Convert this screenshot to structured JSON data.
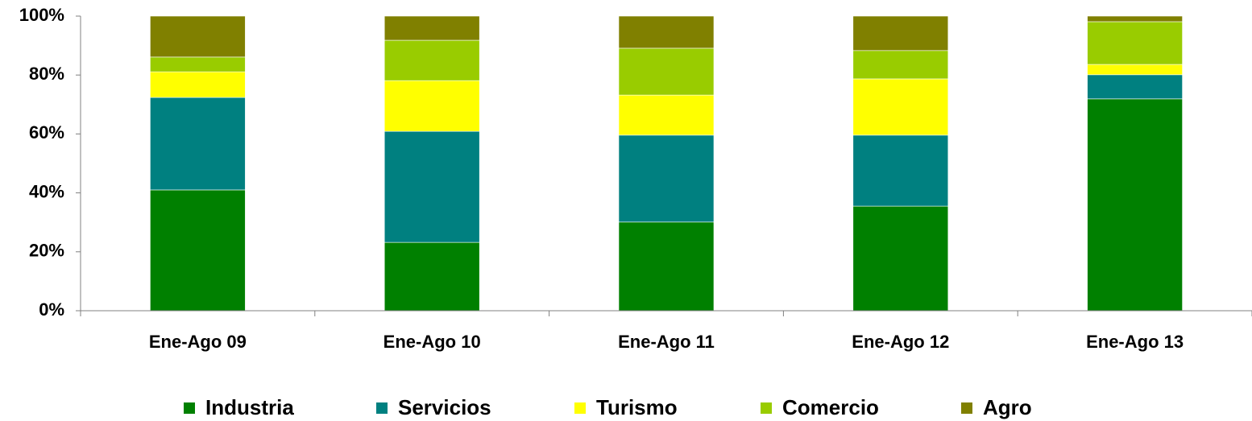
{
  "chart_data": {
    "type": "stacked_bar",
    "categories": [
      "Ene-Ago 09",
      "Ene-Ago 10",
      "Ene-Ago 11",
      "Ene-Ago 12",
      "Ene-Ago 13"
    ],
    "series": [
      {
        "name": "Industria",
        "color": "#008000",
        "values": [
          41.0,
          23.2,
          30.1,
          35.5,
          71.9
        ]
      },
      {
        "name": "Servicios",
        "color": "#008080",
        "values": [
          31.4,
          37.7,
          29.5,
          24.1,
          8.2
        ]
      },
      {
        "name": "Turismo",
        "color": "#ffff00",
        "values": [
          8.7,
          17.2,
          13.6,
          19.1,
          3.5
        ]
      },
      {
        "name": "Comercio",
        "color": "#99cc00",
        "values": [
          5.0,
          13.7,
          15.9,
          9.6,
          14.5
        ]
      },
      {
        "name": "Agro",
        "color": "#808000",
        "values": [
          13.9,
          8.2,
          10.9,
          11.7,
          1.9
        ]
      }
    ],
    "ylim": [
      0,
      100
    ],
    "yticks": [
      {
        "value": 0,
        "label": "0%"
      },
      {
        "value": 20,
        "label": "20%"
      },
      {
        "value": 40,
        "label": "40%"
      },
      {
        "value": 60,
        "label": "60%"
      },
      {
        "value": 80,
        "label": "80%"
      },
      {
        "value": 100,
        "label": "100%"
      }
    ],
    "grid": false,
    "legend": "bottom"
  }
}
